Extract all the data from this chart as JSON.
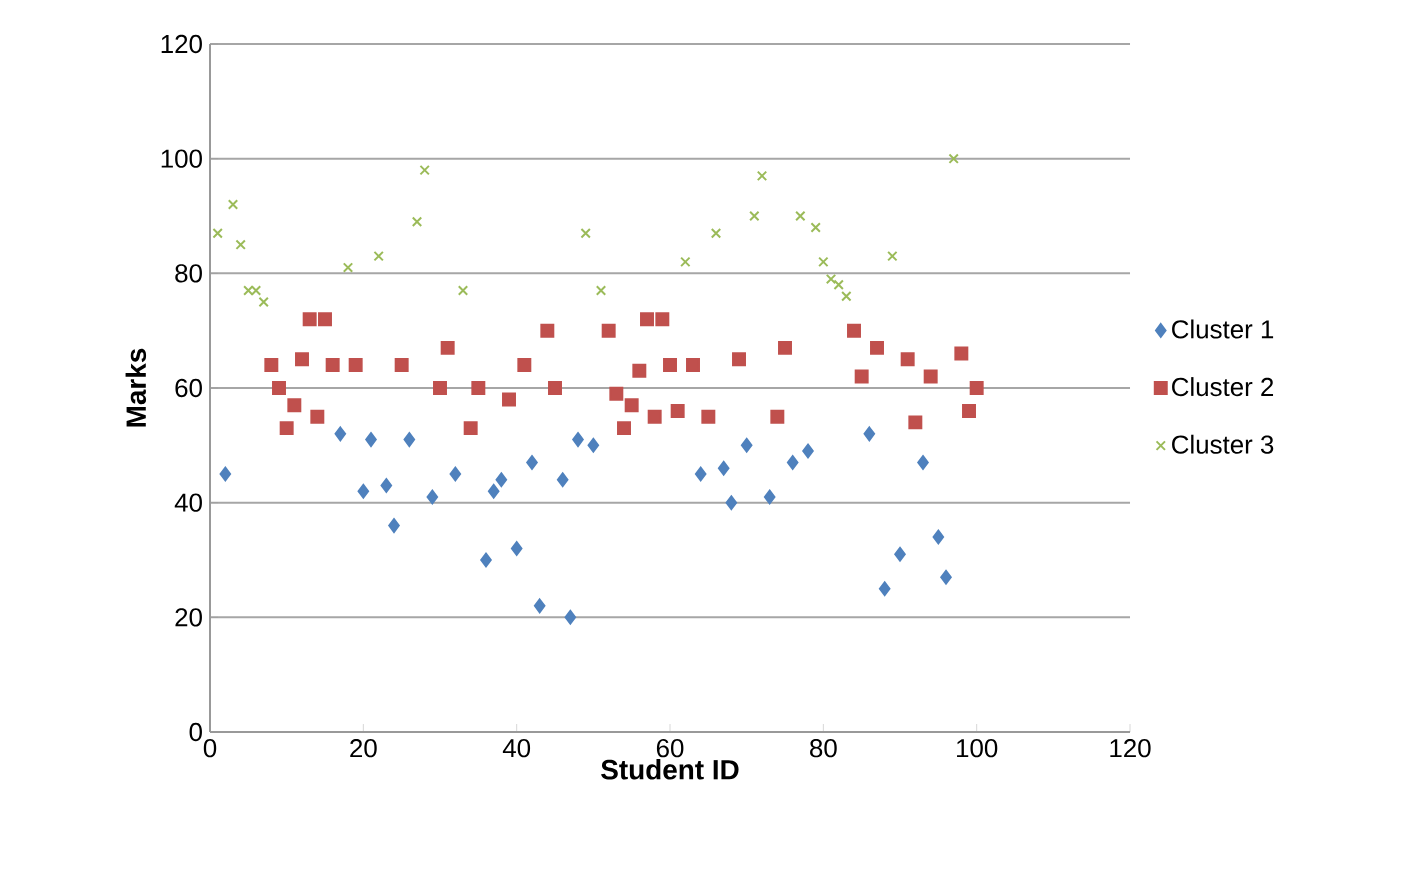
{
  "chart_data": {
    "type": "scatter",
    "xlabel": "Student ID",
    "ylabel": "Marks",
    "xlim": [
      0,
      120
    ],
    "ylim": [
      0,
      120
    ],
    "xticks": [
      0,
      20,
      40,
      60,
      80,
      100,
      120
    ],
    "yticks": [
      0,
      20,
      40,
      60,
      80,
      100,
      120
    ],
    "grid": "y",
    "legend": "right",
    "series": [
      {
        "name": "Cluster 1",
        "color": "#4f81bd",
        "marker": "diamond",
        "x": [
          2,
          17,
          20,
          21,
          23,
          24,
          26,
          29,
          32,
          36,
          37,
          38,
          40,
          42,
          43,
          46,
          47,
          48,
          50,
          64,
          67,
          68,
          70,
          73,
          76,
          78,
          86,
          88,
          90,
          93,
          95,
          96
        ],
        "values": [
          45,
          52,
          42,
          51,
          43,
          36,
          51,
          41,
          45,
          30,
          42,
          44,
          32,
          47,
          22,
          44,
          20,
          51,
          50,
          45,
          46,
          40,
          50,
          41,
          47,
          49,
          52,
          25,
          31,
          47,
          34,
          27
        ]
      },
      {
        "name": "Cluster 2",
        "color": "#c0504d",
        "marker": "square",
        "x": [
          8,
          9,
          10,
          11,
          12,
          13,
          14,
          15,
          16,
          19,
          25,
          30,
          31,
          34,
          35,
          39,
          41,
          44,
          45,
          52,
          53,
          54,
          55,
          56,
          57,
          58,
          59,
          60,
          61,
          63,
          65,
          69,
          74,
          75,
          84,
          85,
          87,
          91,
          92,
          94,
          98,
          99,
          100
        ],
        "values": [
          64,
          60,
          53,
          57,
          65,
          72,
          55,
          72,
          64,
          64,
          64,
          60,
          67,
          53,
          60,
          58,
          64,
          70,
          60,
          70,
          59,
          53,
          57,
          63,
          72,
          55,
          72,
          64,
          56,
          64,
          55,
          65,
          55,
          67,
          70,
          62,
          67,
          65,
          54,
          62,
          66,
          56,
          60
        ]
      },
      {
        "name": "Cluster 3",
        "color": "#9bbb59",
        "marker": "cross",
        "x": [
          1,
          3,
          4,
          5,
          6,
          7,
          18,
          22,
          27,
          28,
          33,
          49,
          51,
          62,
          66,
          71,
          72,
          77,
          79,
          80,
          81,
          82,
          83,
          89,
          97
        ],
        "values": [
          87,
          92,
          85,
          77,
          77,
          75,
          81,
          83,
          89,
          98,
          77,
          87,
          77,
          82,
          87,
          90,
          97,
          90,
          88,
          82,
          79,
          78,
          76,
          83,
          100
        ]
      }
    ]
  }
}
